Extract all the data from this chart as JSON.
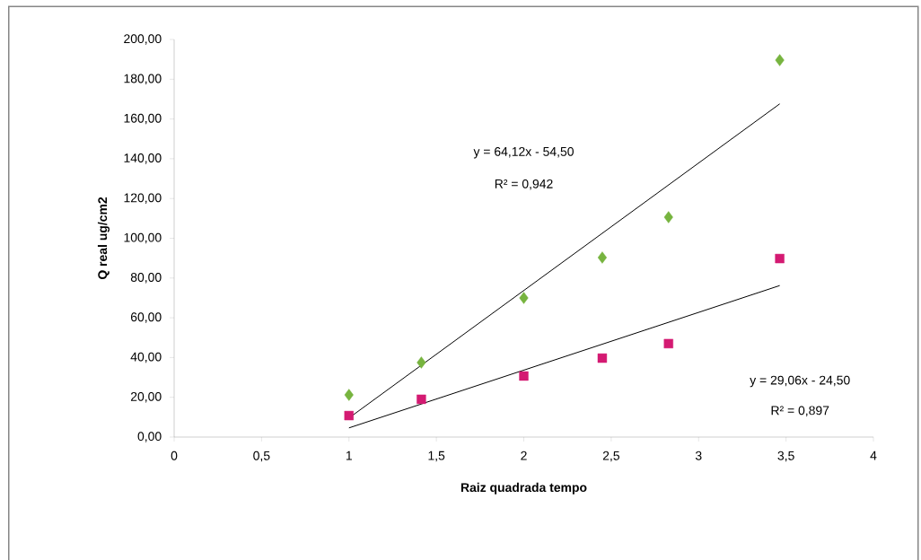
{
  "chart_data": {
    "type": "scatter",
    "xlabel": "Raiz quadrada tempo",
    "ylabel": "Q real ug/cm2",
    "xlim": [
      0,
      4
    ],
    "ylim": [
      0,
      200
    ],
    "xticks": [
      0,
      {
        "value": 0.5,
        "label": "0,5"
      },
      1,
      {
        "value": 1.5,
        "label": "1,5"
      },
      2,
      {
        "value": 2.5,
        "label": "2,5"
      },
      3,
      {
        "value": 3.5,
        "label": "3,5"
      },
      4
    ],
    "yticks": [
      {
        "value": 0,
        "label": "0,00"
      },
      {
        "value": 20,
        "label": "20,00"
      },
      {
        "value": 40,
        "label": "40,00"
      },
      {
        "value": 60,
        "label": "60,00"
      },
      {
        "value": 80,
        "label": "80,00"
      },
      {
        "value": 100,
        "label": "100,00"
      },
      {
        "value": 120,
        "label": "120,00"
      },
      {
        "value": 140,
        "label": "140,00"
      },
      {
        "value": 160,
        "label": "160,00"
      },
      {
        "value": 180,
        "label": "180,00"
      },
      {
        "value": 200,
        "label": "200,00"
      }
    ],
    "grid": false,
    "series": [
      {
        "marker": "diamond",
        "color": "#77b43f",
        "x": [
          1,
          1.414,
          2,
          2.449,
          2.828,
          3.464
        ],
        "values": [
          21.2,
          37.5,
          70,
          90.3,
          110.6,
          189.6
        ]
      },
      {
        "marker": "square",
        "color": "#d41a72",
        "x": [
          1,
          1.414,
          2,
          2.449,
          2.828,
          3.464
        ],
        "values": [
          10.8,
          19,
          30.7,
          39.7,
          47,
          89.8
        ]
      },
      {
        "type": "line",
        "marker": "none",
        "line_style": "solid",
        "color": "#000000",
        "x": [
          1,
          3.464
        ],
        "values": [
          9.6,
          167.6
        ]
      },
      {
        "type": "line",
        "marker": "none",
        "line_style": "solid",
        "color": "#000000",
        "x": [
          1,
          3.464
        ],
        "values": [
          4.6,
          76.2
        ]
      }
    ],
    "annotations": [
      "y = 64,12x - 54,50",
      "R² = 0,942",
      "y = 29,06x - 24,50",
      "R² = 0,897"
    ]
  }
}
